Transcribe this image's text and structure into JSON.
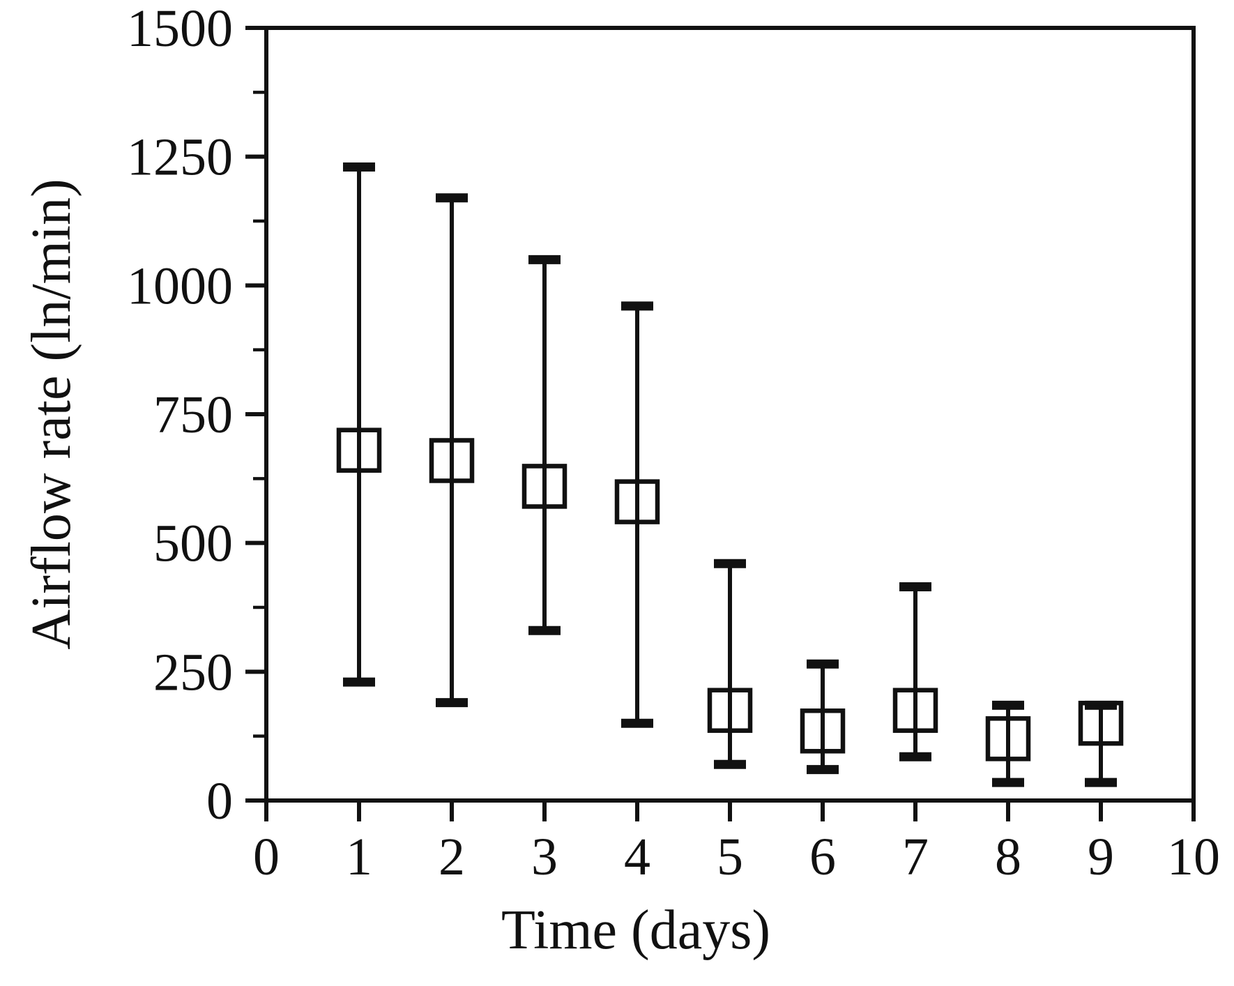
{
  "figure": {
    "background": "#ffffff",
    "ink_color": "#111111",
    "marker": "open-square",
    "error_bars": "asymmetric-range-with-caps"
  },
  "chart_data": {
    "type": "scatter",
    "title": "",
    "xlabel": "Time (days)",
    "ylabel": "Airflow rate (ln/min)",
    "xlim": [
      0,
      10
    ],
    "ylim": [
      0,
      1500
    ],
    "x_ticks": [
      0,
      1,
      2,
      3,
      4,
      5,
      6,
      7,
      8,
      9,
      10
    ],
    "y_major_ticks": [
      0,
      250,
      500,
      750,
      1000,
      1250,
      1500
    ],
    "y_minor_tick_interval": 125,
    "grid": false,
    "legend": "none",
    "frame": "full-box",
    "series": [
      {
        "name": "Airflow rate",
        "x": [
          1,
          2,
          3,
          4,
          5,
          6,
          7,
          8,
          9
        ],
        "y": [
          680,
          660,
          610,
          580,
          175,
          135,
          175,
          120,
          150
        ],
        "error_low": [
          230,
          190,
          330,
          150,
          70,
          60,
          85,
          35,
          35
        ],
        "error_high": [
          1230,
          1170,
          1050,
          960,
          460,
          265,
          415,
          185,
          185
        ]
      }
    ]
  }
}
